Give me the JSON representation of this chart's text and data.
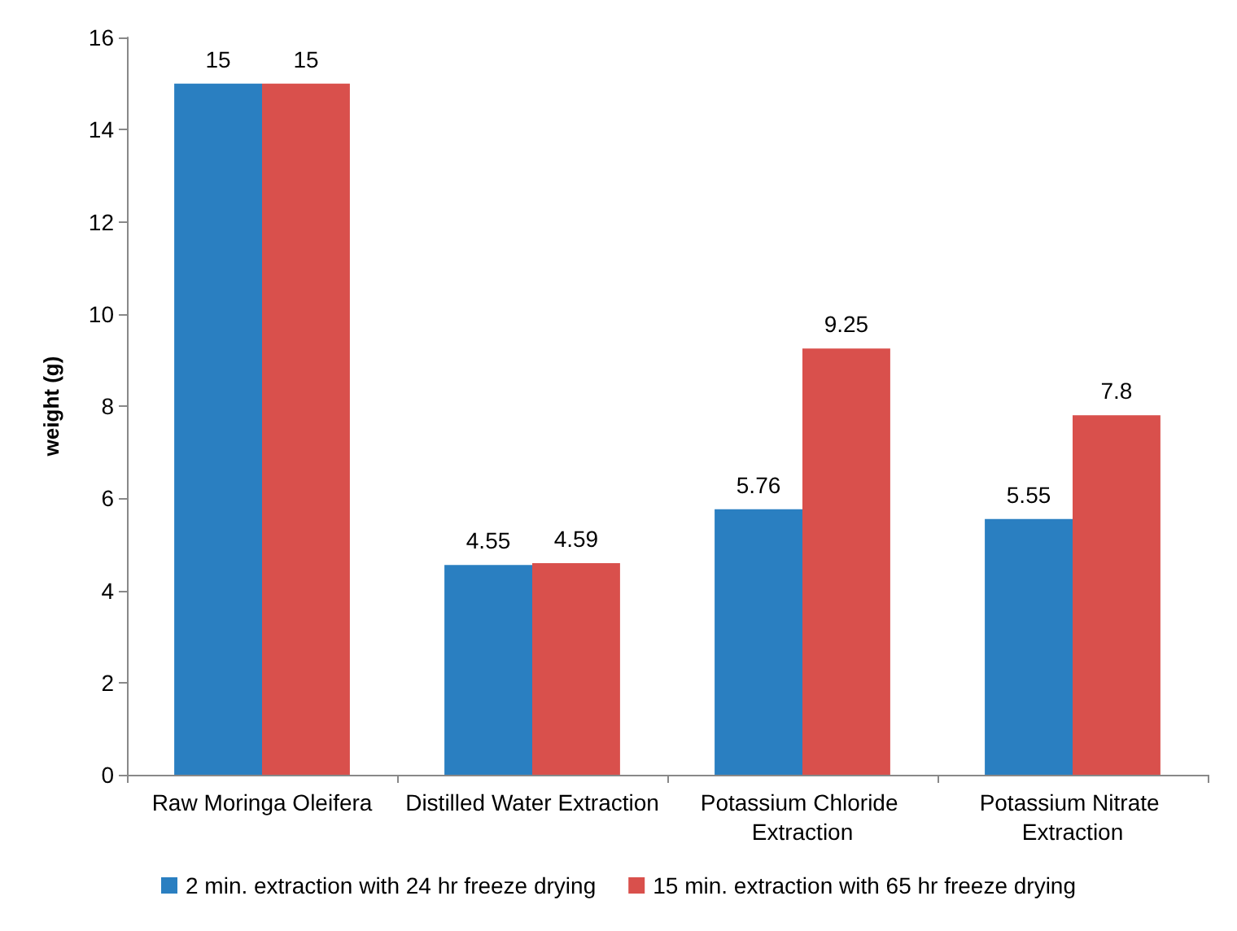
{
  "chart_data": {
    "type": "bar",
    "ylabel": "weight (g)",
    "categories": [
      "Raw Moringa Oleifera",
      "Distilled Water Extraction",
      "Potassium Chloride Extraction",
      "Potassium Nitrate Extraction"
    ],
    "series": [
      {
        "name": "2 min. extraction with 24 hr freeze drying",
        "color": "#2a7fc1",
        "values": [
          15,
          4.55,
          5.76,
          5.55
        ]
      },
      {
        "name": "15 min. extraction with 65 hr freeze drying",
        "color": "#d9504c",
        "values": [
          15,
          4.59,
          9.25,
          7.8
        ]
      }
    ],
    "ylim": [
      0,
      16
    ],
    "yticks": [
      0,
      2,
      4,
      6,
      8,
      10,
      12,
      14,
      16
    ],
    "data_labels": true,
    "legend": "bottom",
    "grid": false
  }
}
